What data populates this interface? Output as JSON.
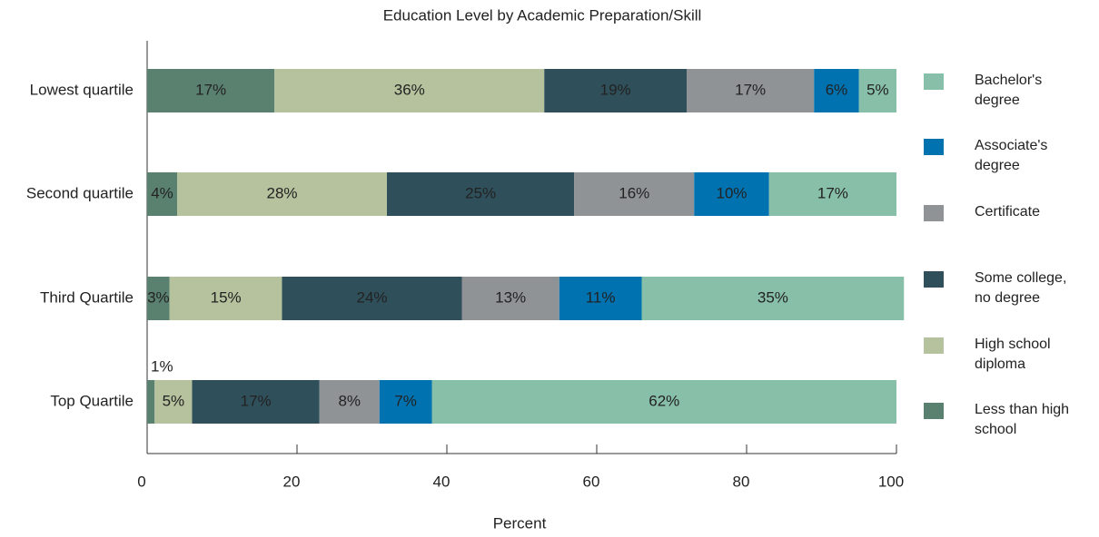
{
  "chart_data": {
    "type": "stacked_barh",
    "title": "Education Level by Academic Preparation/Skill",
    "x_label": "Percent",
    "categories": [
      "Lowest quartile",
      "Second quartile",
      "Third Quartile",
      "Top Quartile"
    ],
    "series": [
      {
        "name": "Less than high school",
        "color": "#5a8170",
        "values": [
          17,
          4,
          3,
          1
        ],
        "value_labels": [
          "17%",
          "4%",
          "3%",
          "1%"
        ]
      },
      {
        "name": "High school diploma",
        "color": "#b5c29d",
        "values": [
          36,
          28,
          15,
          5
        ],
        "value_labels": [
          "36%",
          "28%",
          "15%",
          "5%"
        ]
      },
      {
        "name": "Some college, no degree",
        "color": "#2f4f5a",
        "values": [
          19,
          25,
          24,
          17
        ],
        "value_labels": [
          "19%",
          "25%",
          "24%",
          "17%"
        ]
      },
      {
        "name": "Certificate",
        "color": "#8f9396",
        "values": [
          17,
          16,
          13,
          8
        ],
        "value_labels": [
          "17%",
          "16%",
          "13%",
          "8%"
        ]
      },
      {
        "name": "Associate's degree",
        "color": "#0072b0",
        "values": [
          6,
          10,
          11,
          7
        ],
        "value_labels": [
          "6%",
          "10%",
          "11%",
          "7%"
        ]
      },
      {
        "name": "Bachelor's degree",
        "color": "#88bfa8",
        "values": [
          5,
          17,
          35,
          62
        ],
        "value_labels": [
          "5%",
          "17%",
          "35%",
          "62%"
        ]
      }
    ],
    "xlim": [
      0,
      100
    ],
    "xticks": [
      0,
      20,
      40,
      60,
      80,
      100
    ],
    "legend": "right"
  }
}
